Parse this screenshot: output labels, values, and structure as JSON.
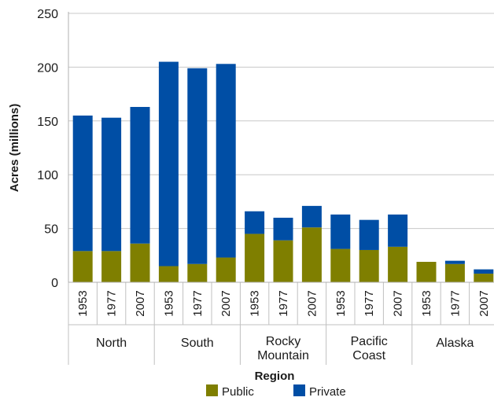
{
  "chart_data": {
    "type": "bar",
    "stacked": true,
    "xlabel": "Region",
    "ylabel": "Acres (millions)",
    "ylim": [
      0,
      250
    ],
    "yticks": [
      0,
      50,
      100,
      150,
      200,
      250
    ],
    "grid": true,
    "legend_position": "bottom",
    "groups": [
      {
        "name_lines": [
          "North"
        ],
        "years": [
          "1953",
          "1977",
          "2007"
        ]
      },
      {
        "name_lines": [
          "South"
        ],
        "years": [
          "1953",
          "1977",
          "2007"
        ]
      },
      {
        "name_lines": [
          "Rocky",
          "Mountain"
        ],
        "years": [
          "1953",
          "1977",
          "2007"
        ]
      },
      {
        "name_lines": [
          "Pacific",
          "Coast"
        ],
        "years": [
          "1953",
          "1977",
          "2007"
        ]
      },
      {
        "name_lines": [
          "Alaska"
        ],
        "years": [
          "1953",
          "1977",
          "2007"
        ]
      }
    ],
    "series": [
      {
        "name": "Public",
        "color": "#7f7f00",
        "values": [
          29,
          29,
          36,
          15,
          17,
          23,
          45,
          39,
          51,
          31,
          30,
          33,
          19,
          17,
          8
        ]
      },
      {
        "name": "Private",
        "color": "#004ea5",
        "values": [
          126,
          124,
          127,
          190,
          182,
          180,
          21,
          21,
          20,
          32,
          28,
          30,
          0,
          3,
          4
        ]
      }
    ]
  }
}
